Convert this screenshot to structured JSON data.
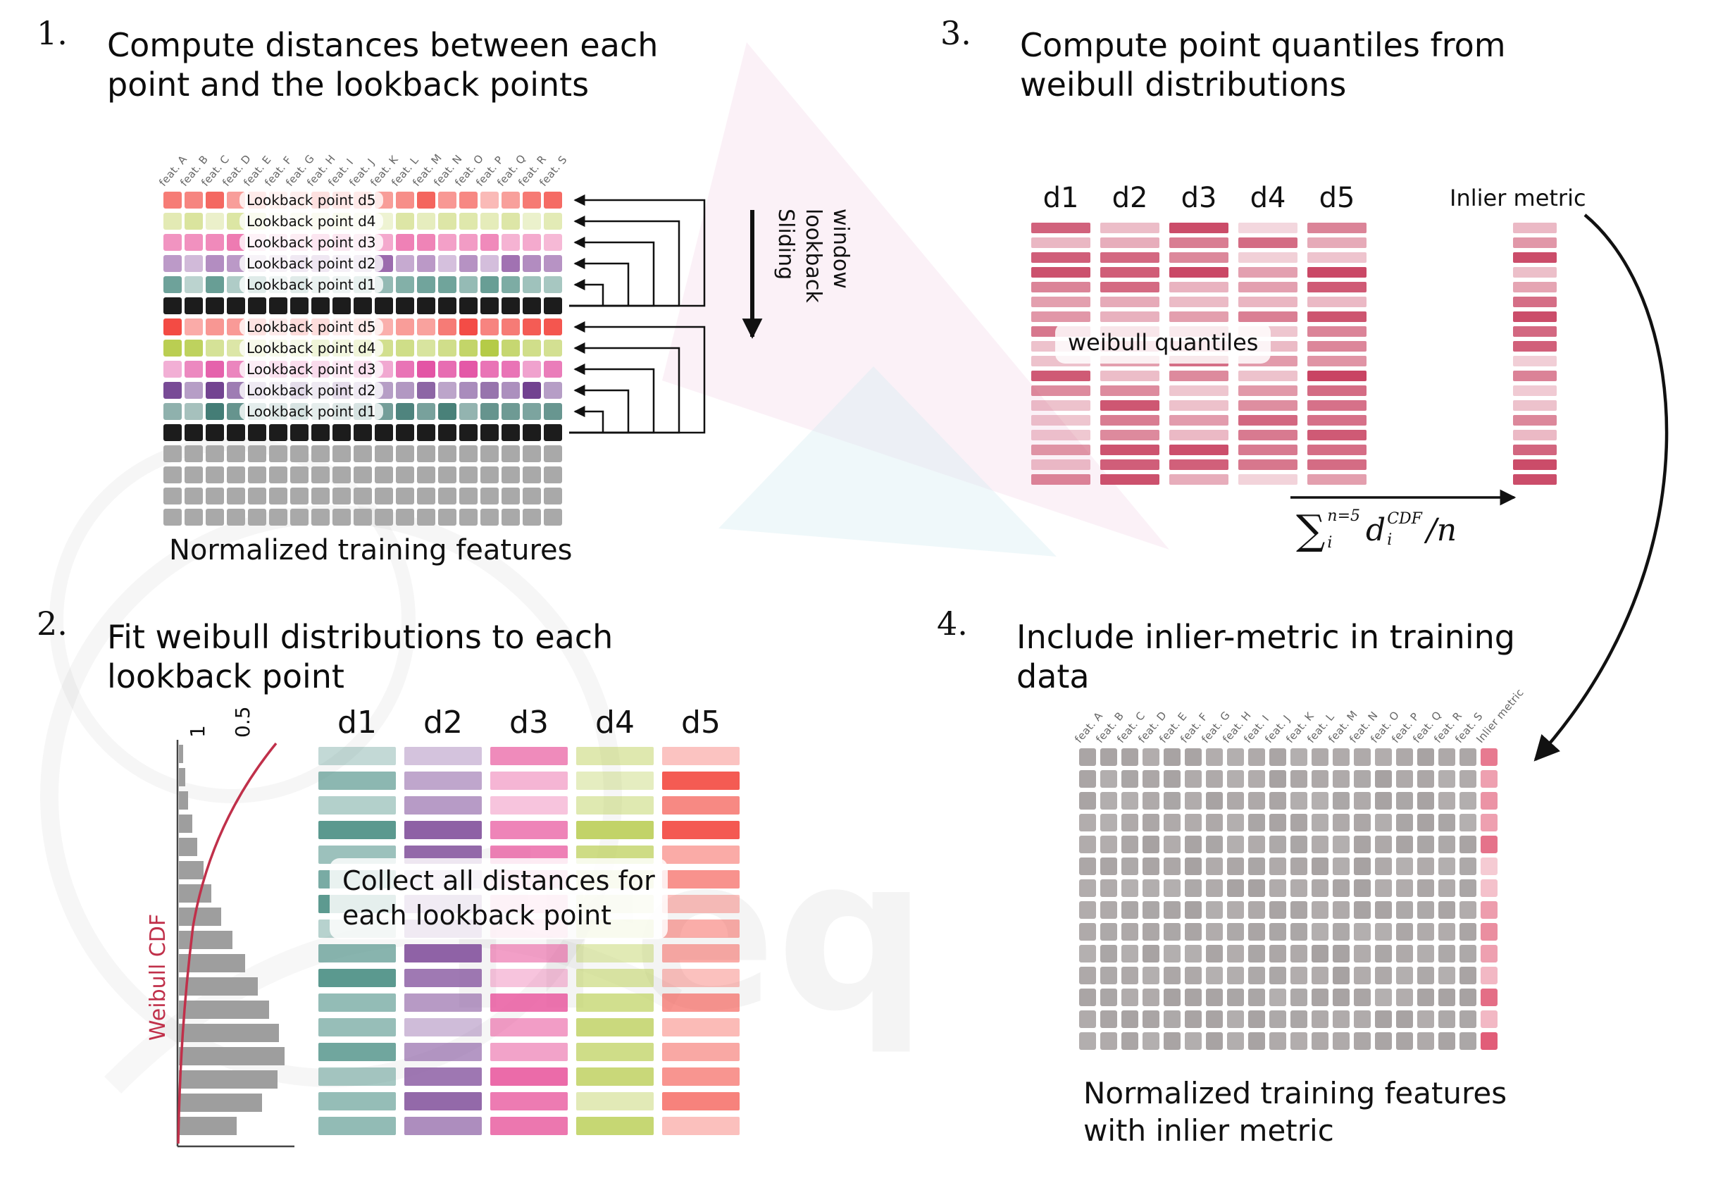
{
  "p1": {
    "number": "1.",
    "title": "Compute distances between each\npoint and the lookback points",
    "caption": "Normalized training features",
    "sliding_label": "Sliding\nlookback\nwindow",
    "headers": [
      "feat. A",
      "feat. B",
      "feat. C",
      "feat. D",
      "feat. E",
      "feat. F",
      "feat. G",
      "feat. H",
      "feat. I",
      "feat. J",
      "feat. K",
      "feat. L",
      "feat. M",
      "feat. N",
      "feat. O",
      "feat. P",
      "feat. Q",
      "feat. R",
      "feat. S"
    ],
    "grid_rows": [
      {
        "color": "#f4635c",
        "label": "Lookback point d5"
      },
      {
        "color": "#dae49e",
        "label": "Lookback point d4"
      },
      {
        "color": "#ee79b1",
        "label": "Lookback point d3"
      },
      {
        "color": "#9b69ad",
        "label": "Lookback point d2"
      },
      {
        "color": "#5c978d",
        "label": "Lookback point d1"
      },
      {
        "color": "#1c1c1c",
        "flat": true
      },
      {
        "color": "#f3453e",
        "label": "Lookback point d5"
      },
      {
        "color": "#b2c93f",
        "label": "Lookback point d4"
      },
      {
        "color": "#e1469d",
        "label": "Lookback point d3"
      },
      {
        "color": "#70408f",
        "label": "Lookback point d2"
      },
      {
        "color": "#306f67",
        "label": "Lookback point d1"
      },
      {
        "color": "#1c1c1c",
        "flat": true
      },
      {
        "color": "#a9a9a9",
        "flat": true
      },
      {
        "color": "#a9a9a9",
        "flat": true
      },
      {
        "color": "#a9a9a9",
        "flat": true
      },
      {
        "color": "#a9a9a9",
        "flat": true
      }
    ]
  },
  "p2": {
    "number": "2.",
    "title": "Fit weibull distributions to each\nlookback point",
    "overlay": "Collect all distances for\neach lookback point",
    "chart": {
      "cdf_label": "Weibull CDF",
      "tick_1": "1",
      "tick_05": "0.5"
    },
    "columns": [
      {
        "label": "d1",
        "color": "#4f9187"
      },
      {
        "label": "d2",
        "color": "#8a5ca2"
      },
      {
        "label": "d3",
        "color": "#e8579d"
      },
      {
        "label": "d4",
        "color": "#bdd05c"
      },
      {
        "label": "d5",
        "color": "#f4544c"
      }
    ]
  },
  "p3": {
    "number": "3.",
    "title": "Compute point quantiles from\nweibull distributions",
    "overlay": "weibull quantiles",
    "inlier_label": "Inlier metric",
    "column_labels": [
      "d1",
      "d2",
      "d3",
      "d4",
      "d5"
    ],
    "bar_color": "#c84261",
    "formula": {
      "sigma": "∑",
      "sup": "n=5",
      "sub": "i",
      "term": "d",
      "term_sup": "CDF",
      "term_sub": "i",
      "tail": "/n"
    }
  },
  "p4": {
    "number": "4.",
    "title": "Include inlier-metric in training\ndata",
    "caption": "Normalized training features\nwith inlier metric",
    "headers": [
      "feat. A",
      "feat. B",
      "feat. C",
      "feat. D",
      "feat. E",
      "feat. F",
      "feat. G",
      "feat. H",
      "feat. I",
      "feat. J",
      "feat. K",
      "feat. L",
      "feat. M",
      "feat. N",
      "feat. O",
      "feat. P",
      "feat. Q",
      "feat. R",
      "feat. S",
      "Inlier metric"
    ],
    "gray": "#a7a2a2",
    "inlier_color": "#e05672"
  },
  "watermark": {
    "text": "freq"
  }
}
